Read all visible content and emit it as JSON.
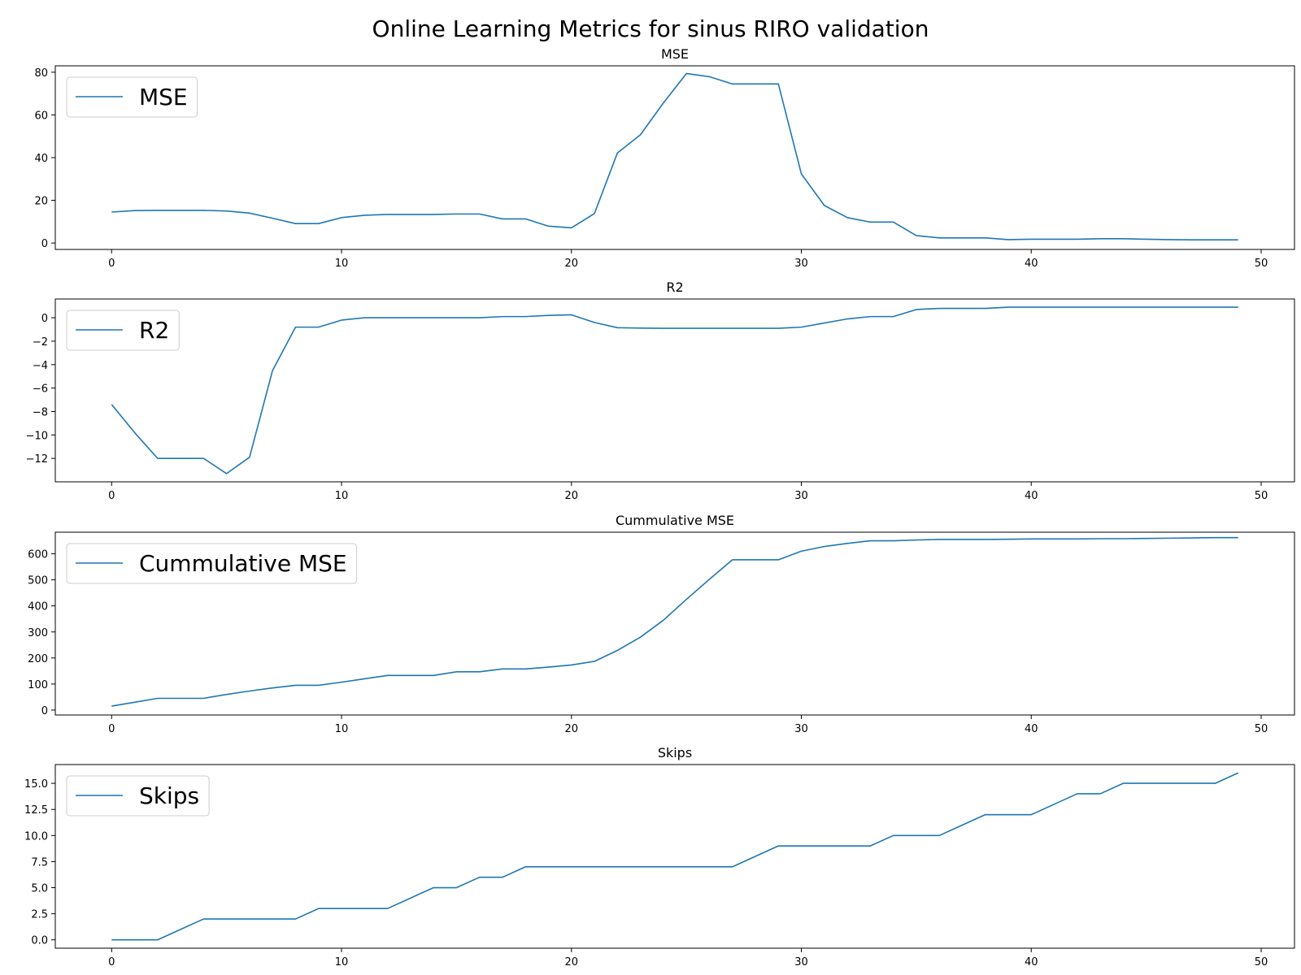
{
  "title": "Online Learning Metrics for sinus RIRO validation",
  "colors": {
    "line": "#1f77b4",
    "axes": "#000000",
    "legend_border": "#cccccc"
  },
  "chart_data": [
    {
      "type": "line",
      "title": "MSE",
      "legend": "top-left",
      "grid": false,
      "xlim": [
        -2.45,
        51.45
      ],
      "ylim": [
        -3,
        83
      ],
      "xticks": [
        0,
        10,
        20,
        30,
        40,
        50
      ],
      "yticks": [
        0,
        20,
        40,
        60,
        80
      ],
      "series": [
        {
          "name": "MSE",
          "x": [
            0,
            1,
            2,
            3,
            4,
            5,
            6,
            7,
            8,
            9,
            10,
            11,
            12,
            13,
            14,
            15,
            16,
            17,
            18,
            19,
            20,
            21,
            22,
            23,
            24,
            25,
            26,
            27,
            28,
            29,
            30,
            31,
            32,
            33,
            34,
            35,
            36,
            37,
            38,
            39,
            40,
            41,
            42,
            43,
            44,
            45,
            46,
            47,
            48,
            49
          ],
          "y": [
            14.5,
            15.2,
            15.3,
            15.3,
            15.3,
            15.0,
            14.0,
            11.6,
            9.1,
            9.1,
            11.9,
            13.0,
            13.4,
            13.4,
            13.4,
            13.6,
            13.6,
            11.3,
            11.3,
            7.9,
            7.1,
            13.8,
            42.2,
            50.7,
            65.6,
            79.4,
            77.9,
            74.5,
            74.5,
            74.5,
            32.4,
            17.6,
            11.9,
            9.8,
            9.8,
            3.5,
            2.4,
            2.4,
            2.4,
            1.6,
            1.8,
            1.8,
            1.8,
            2.0,
            2.0,
            1.8,
            1.6,
            1.5,
            1.5,
            1.5
          ]
        }
      ]
    },
    {
      "type": "line",
      "title": "R2",
      "legend": "top-left",
      "grid": false,
      "xlim": [
        -2.45,
        51.45
      ],
      "ylim": [
        -14.0,
        1.6
      ],
      "xticks": [
        0,
        10,
        20,
        30,
        40,
        50
      ],
      "yticks": [
        0,
        -2,
        -4,
        -6,
        -8,
        -10,
        -12
      ],
      "series": [
        {
          "name": "R2",
          "x": [
            0,
            1,
            2,
            3,
            4,
            5,
            6,
            7,
            8,
            9,
            10,
            11,
            12,
            13,
            14,
            15,
            16,
            17,
            18,
            19,
            20,
            21,
            22,
            23,
            24,
            25,
            26,
            27,
            28,
            29,
            30,
            31,
            32,
            33,
            34,
            35,
            36,
            37,
            38,
            39,
            40,
            41,
            42,
            43,
            44,
            45,
            46,
            47,
            48,
            49
          ],
          "y": [
            -7.4,
            -9.8,
            -12.0,
            -12.0,
            -12.0,
            -13.3,
            -11.9,
            -4.5,
            -0.8,
            -0.8,
            -0.2,
            0.0,
            0.0,
            0.0,
            0.0,
            0.0,
            0.0,
            0.1,
            0.1,
            0.2,
            0.25,
            -0.4,
            -0.85,
            -0.88,
            -0.9,
            -0.9,
            -0.9,
            -0.9,
            -0.9,
            -0.9,
            -0.8,
            -0.45,
            -0.1,
            0.1,
            0.1,
            0.7,
            0.8,
            0.8,
            0.8,
            0.9,
            0.9,
            0.9,
            0.9,
            0.9,
            0.9,
            0.9,
            0.9,
            0.9,
            0.9,
            0.9
          ]
        }
      ]
    },
    {
      "type": "line",
      "title": "Cummulative MSE",
      "legend": "top-left",
      "grid": false,
      "xlim": [
        -2.45,
        51.45
      ],
      "ylim": [
        -19,
        683
      ],
      "xticks": [
        0,
        10,
        20,
        30,
        40,
        50
      ],
      "yticks": [
        0,
        100,
        200,
        300,
        400,
        500,
        600
      ],
      "series": [
        {
          "name": "Cummulative MSE",
          "x": [
            0,
            1,
            2,
            3,
            4,
            5,
            6,
            7,
            8,
            9,
            10,
            11,
            12,
            13,
            14,
            15,
            16,
            17,
            18,
            19,
            20,
            21,
            22,
            23,
            24,
            25,
            26,
            27,
            28,
            29,
            30,
            31,
            32,
            33,
            34,
            35,
            36,
            37,
            38,
            39,
            40,
            41,
            42,
            43,
            44,
            45,
            46,
            47,
            48,
            49
          ],
          "y": [
            15,
            30,
            45,
            45,
            45,
            60,
            73,
            85,
            95,
            95,
            107,
            120,
            133,
            133,
            133,
            147,
            147,
            158,
            158,
            165,
            173,
            187,
            229,
            280,
            345,
            425,
            502,
            577,
            577,
            577,
            610,
            628,
            640,
            650,
            650,
            653,
            655,
            655,
            655,
            656,
            657,
            657,
            657,
            658,
            658,
            659,
            660,
            661,
            662,
            662
          ]
        }
      ]
    },
    {
      "type": "line",
      "title": "Skips",
      "legend": "top-left",
      "grid": false,
      "xlim": [
        -2.45,
        51.45
      ],
      "ylim": [
        -0.8,
        16.8
      ],
      "xticks": [
        0,
        10,
        20,
        30,
        40,
        50
      ],
      "yticks": [
        0.0,
        2.5,
        5.0,
        7.5,
        10.0,
        12.5,
        15.0
      ],
      "ytick_labels": [
        "0.0",
        "2.5",
        "5.0",
        "7.5",
        "10.0",
        "12.5",
        "15.0"
      ],
      "series": [
        {
          "name": "Skips",
          "x": [
            0,
            1,
            2,
            3,
            4,
            5,
            6,
            7,
            8,
            9,
            10,
            11,
            12,
            13,
            14,
            15,
            16,
            17,
            18,
            19,
            20,
            21,
            22,
            23,
            24,
            25,
            26,
            27,
            28,
            29,
            30,
            31,
            32,
            33,
            34,
            35,
            36,
            37,
            38,
            39,
            40,
            41,
            42,
            43,
            44,
            45,
            46,
            47,
            48,
            49
          ],
          "y": [
            0,
            0,
            0,
            1,
            2,
            2,
            2,
            2,
            2,
            3,
            3,
            3,
            3,
            4,
            5,
            5,
            6,
            6,
            7,
            7,
            7,
            7,
            7,
            7,
            7,
            7,
            7,
            7,
            8,
            9,
            9,
            9,
            9,
            9,
            10,
            10,
            10,
            11,
            12,
            12,
            12,
            13,
            14,
            14,
            15,
            15,
            15,
            15,
            15,
            16
          ]
        }
      ]
    }
  ]
}
